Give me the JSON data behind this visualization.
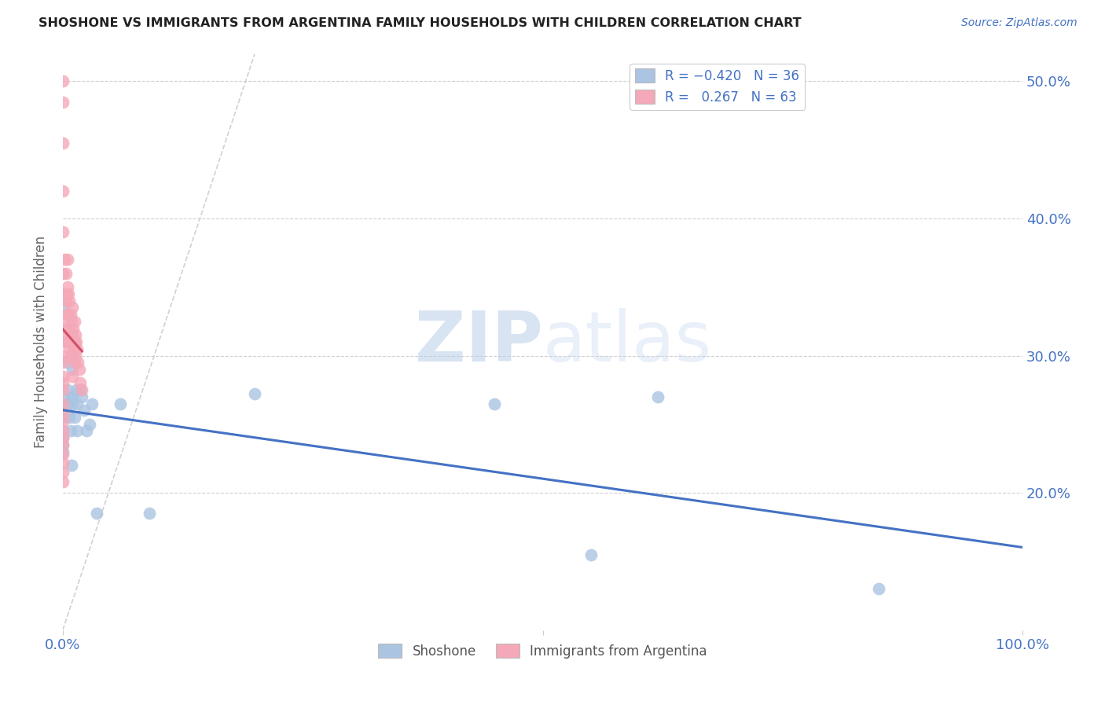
{
  "title": "SHOSHONE VS IMMIGRANTS FROM ARGENTINA FAMILY HOUSEHOLDS WITH CHILDREN CORRELATION CHART",
  "source": "Source: ZipAtlas.com",
  "ylabel": "Family Households with Children",
  "watermark_zip": "ZIP",
  "watermark_atlas": "atlas",
  "shoshone_R": -0.42,
  "shoshone_N": 36,
  "argentina_R": 0.267,
  "argentina_N": 63,
  "shoshone_color": "#aac4e2",
  "argentina_color": "#f5a8b8",
  "shoshone_line_color": "#4472C4",
  "argentina_line_color": "#D05068",
  "diagonal_color": "#cccccc",
  "background": "#ffffff",
  "grid_color": "#d0d0d0",
  "xlim": [
    0.0,
    1.0
  ],
  "ylim": [
    0.1,
    0.52
  ],
  "ytick_vals": [
    0.2,
    0.3,
    0.4,
    0.5
  ],
  "ytick_labels": [
    "20.0%",
    "30.0%",
    "40.0%",
    "50.0%"
  ],
  "shoshone_x": [
    0.0,
    0.0,
    0.0,
    0.0,
    0.0,
    0.0,
    0.0,
    0.0,
    0.005,
    0.005,
    0.007,
    0.007,
    0.008,
    0.009,
    0.009,
    0.01,
    0.01,
    0.01,
    0.012,
    0.014,
    0.015,
    0.015,
    0.018,
    0.02,
    0.022,
    0.025,
    0.028,
    0.03,
    0.035,
    0.06,
    0.09,
    0.2,
    0.45,
    0.55,
    0.62,
    0.85
  ],
  "shoshone_y": [
    0.335,
    0.27,
    0.265,
    0.255,
    0.245,
    0.24,
    0.235,
    0.23,
    0.295,
    0.275,
    0.265,
    0.255,
    0.245,
    0.27,
    0.22,
    0.29,
    0.27,
    0.265,
    0.255,
    0.275,
    0.265,
    0.245,
    0.275,
    0.27,
    0.26,
    0.245,
    0.25,
    0.265,
    0.185,
    0.265,
    0.185,
    0.272,
    0.265,
    0.155,
    0.27,
    0.13
  ],
  "argentina_x": [
    0.0,
    0.0,
    0.0,
    0.0,
    0.0,
    0.0,
    0.0,
    0.0,
    0.0,
    0.0,
    0.0,
    0.0,
    0.0,
    0.0,
    0.0,
    0.0,
    0.0,
    0.0,
    0.0,
    0.0,
    0.0,
    0.0,
    0.0,
    0.0,
    0.002,
    0.002,
    0.003,
    0.003,
    0.003,
    0.004,
    0.004,
    0.005,
    0.005,
    0.005,
    0.005,
    0.006,
    0.006,
    0.006,
    0.007,
    0.007,
    0.007,
    0.008,
    0.008,
    0.008,
    0.009,
    0.009,
    0.01,
    0.01,
    0.01,
    0.01,
    0.011,
    0.011,
    0.012,
    0.012,
    0.012,
    0.013,
    0.013,
    0.014,
    0.015,
    0.016,
    0.017,
    0.018,
    0.02
  ],
  "argentina_y": [
    0.5,
    0.485,
    0.455,
    0.42,
    0.39,
    0.36,
    0.345,
    0.325,
    0.31,
    0.3,
    0.295,
    0.285,
    0.28,
    0.275,
    0.265,
    0.258,
    0.252,
    0.245,
    0.24,
    0.235,
    0.228,
    0.222,
    0.215,
    0.208,
    0.37,
    0.345,
    0.36,
    0.34,
    0.32,
    0.345,
    0.315,
    0.37,
    0.35,
    0.33,
    0.31,
    0.345,
    0.33,
    0.31,
    0.34,
    0.32,
    0.305,
    0.33,
    0.315,
    0.3,
    0.325,
    0.31,
    0.335,
    0.315,
    0.3,
    0.285,
    0.32,
    0.305,
    0.325,
    0.31,
    0.295,
    0.315,
    0.3,
    0.31,
    0.305,
    0.295,
    0.29,
    0.28,
    0.275
  ]
}
